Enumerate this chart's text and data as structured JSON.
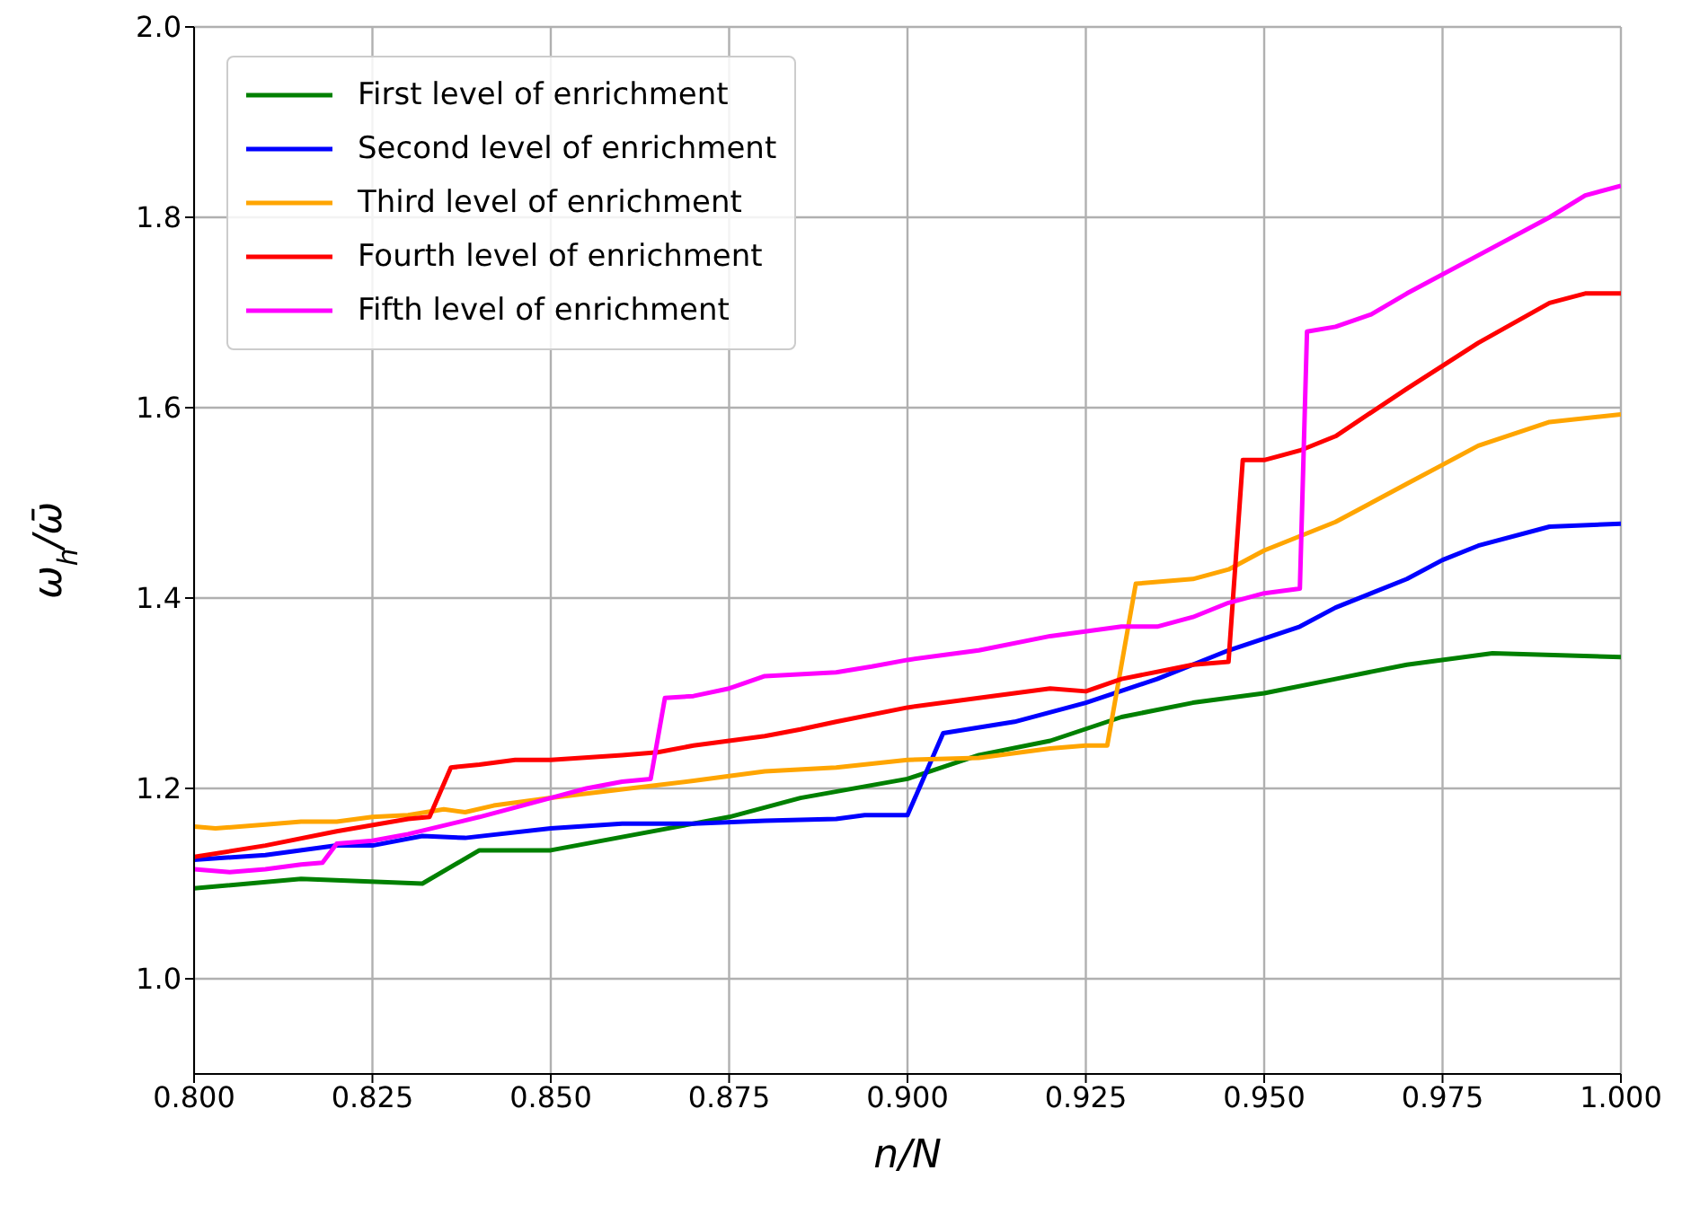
{
  "chart_data": {
    "type": "line",
    "xlabel": "n/N",
    "ylabel": "ω$_{h}$/ω̄",
    "xlim": [
      0.8,
      1.0
    ],
    "xticks": [
      {
        "value": 0.8,
        "label": "0.800"
      },
      {
        "value": 0.825,
        "label": "0.825"
      },
      {
        "value": 0.85,
        "label": "0.850"
      },
      {
        "value": 0.875,
        "label": "0.875"
      },
      {
        "value": 0.9,
        "label": "0.900"
      },
      {
        "value": 0.925,
        "label": "0.925"
      },
      {
        "value": 0.95,
        "label": "0.950"
      },
      {
        "value": 0.975,
        "label": "0.975"
      },
      {
        "value": 1.0,
        "label": "1.000"
      }
    ],
    "ylim": [
      0.9,
      2.0
    ],
    "yticks": [
      {
        "value": 1.0,
        "label": "1.0"
      },
      {
        "value": 1.2,
        "label": "1.2"
      },
      {
        "value": 1.4,
        "label": "1.4"
      },
      {
        "value": 1.6,
        "label": "1.6"
      },
      {
        "value": 1.8,
        "label": "1.8"
      },
      {
        "value": 2.0,
        "label": "2.0"
      }
    ],
    "grid": true,
    "legend": "top left",
    "marker": "none",
    "line_style": "solid",
    "series": [
      {
        "name": "First level of enrichment",
        "color": "#008000",
        "x": [
          0.8,
          0.815,
          0.832,
          0.84,
          0.85,
          0.875,
          0.885,
          0.9,
          0.91,
          0.92,
          0.93,
          0.94,
          0.95,
          0.96,
          0.97,
          0.982,
          1.0
        ],
        "values": [
          1.095,
          1.105,
          1.1,
          1.135,
          1.135,
          1.17,
          1.19,
          1.21,
          1.235,
          1.25,
          1.275,
          1.29,
          1.3,
          1.315,
          1.33,
          1.342,
          1.338
        ]
      },
      {
        "name": "Second level of enrichment",
        "color": "#0000ff",
        "x": [
          0.8,
          0.81,
          0.82,
          0.825,
          0.832,
          0.838,
          0.85,
          0.86,
          0.87,
          0.88,
          0.89,
          0.894,
          0.9,
          0.905,
          0.915,
          0.925,
          0.935,
          0.945,
          0.955,
          0.96,
          0.97,
          0.975,
          0.98,
          0.99,
          1.0
        ],
        "values": [
          1.125,
          1.13,
          1.14,
          1.14,
          1.15,
          1.148,
          1.158,
          1.163,
          1.163,
          1.166,
          1.168,
          1.172,
          1.172,
          1.258,
          1.27,
          1.29,
          1.315,
          1.345,
          1.37,
          1.39,
          1.42,
          1.44,
          1.455,
          1.475,
          1.478
        ]
      },
      {
        "name": "Third level of enrichment",
        "color": "#ffa500",
        "x": [
          0.8,
          0.803,
          0.81,
          0.815,
          0.82,
          0.825,
          0.83,
          0.835,
          0.838,
          0.842,
          0.85,
          0.87,
          0.88,
          0.89,
          0.9,
          0.91,
          0.92,
          0.925,
          0.928,
          0.932,
          0.94,
          0.945,
          0.95,
          0.96,
          0.97,
          0.975,
          0.98,
          0.99,
          1.0
        ],
        "values": [
          1.16,
          1.158,
          1.162,
          1.165,
          1.165,
          1.17,
          1.172,
          1.178,
          1.175,
          1.182,
          1.19,
          1.208,
          1.218,
          1.222,
          1.23,
          1.232,
          1.242,
          1.245,
          1.245,
          1.415,
          1.42,
          1.43,
          1.45,
          1.48,
          1.52,
          1.54,
          1.56,
          1.585,
          1.593
        ]
      },
      {
        "name": "Fourth level of enrichment",
        "color": "#ff0000",
        "x": [
          0.8,
          0.81,
          0.82,
          0.83,
          0.833,
          0.836,
          0.84,
          0.845,
          0.85,
          0.86,
          0.865,
          0.87,
          0.88,
          0.885,
          0.89,
          0.9,
          0.91,
          0.92,
          0.925,
          0.93,
          0.94,
          0.945,
          0.947,
          0.95,
          0.955,
          0.96,
          0.97,
          0.98,
          0.99,
          0.995,
          1.0
        ],
        "values": [
          1.128,
          1.14,
          1.155,
          1.168,
          1.17,
          1.222,
          1.225,
          1.23,
          1.23,
          1.235,
          1.238,
          1.245,
          1.255,
          1.262,
          1.27,
          1.285,
          1.295,
          1.305,
          1.302,
          1.315,
          1.33,
          1.333,
          1.545,
          1.545,
          1.555,
          1.57,
          1.62,
          1.668,
          1.71,
          1.72,
          1.72
        ]
      },
      {
        "name": "Fifth level of enrichment",
        "color": "#ff00ff",
        "x": [
          0.8,
          0.805,
          0.81,
          0.815,
          0.818,
          0.82,
          0.825,
          0.83,
          0.84,
          0.85,
          0.855,
          0.86,
          0.864,
          0.866,
          0.87,
          0.875,
          0.88,
          0.89,
          0.895,
          0.9,
          0.905,
          0.91,
          0.92,
          0.93,
          0.935,
          0.94,
          0.945,
          0.95,
          0.955,
          0.956,
          0.96,
          0.965,
          0.97,
          0.98,
          0.99,
          0.995,
          1.0
        ],
        "values": [
          1.115,
          1.112,
          1.115,
          1.12,
          1.122,
          1.142,
          1.145,
          1.152,
          1.17,
          1.19,
          1.2,
          1.207,
          1.21,
          1.295,
          1.297,
          1.305,
          1.318,
          1.322,
          1.328,
          1.335,
          1.34,
          1.345,
          1.36,
          1.37,
          1.37,
          1.38,
          1.395,
          1.405,
          1.41,
          1.68,
          1.685,
          1.698,
          1.72,
          1.76,
          1.8,
          1.823,
          1.833
        ]
      }
    ]
  }
}
